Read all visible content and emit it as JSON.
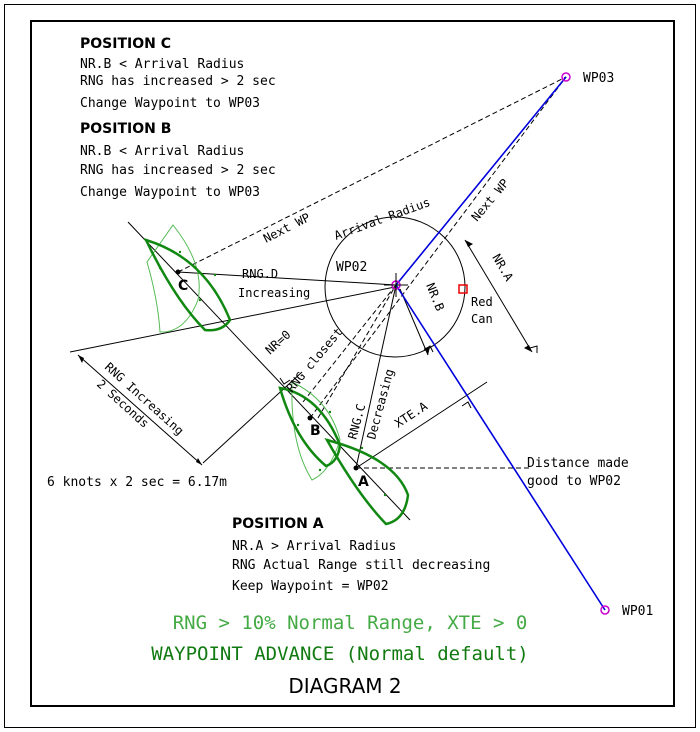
{
  "position_c": {
    "heading": "POSITION C",
    "lines": [
      "NR.B <  Arrival Radius",
      "RNG has increased > 2 sec",
      "Change Waypoint to WP03"
    ]
  },
  "position_b": {
    "heading": "POSITION B",
    "lines": [
      "NR.B <  Arrival Radius",
      "RNG has increased > 2 sec",
      "Change Waypoint to WP03"
    ]
  },
  "position_a": {
    "heading": "POSITION A",
    "lines": [
      "NR.A > Arrival Radius",
      "RNG Actual Range still decreasing",
      "Keep Waypoint = WP02"
    ]
  },
  "labels": {
    "wp03": "WP03",
    "wp02": "WP02",
    "wp01": "WP01",
    "arrival_radius": "Arrival Radius",
    "next_wp_upper": "Next WP",
    "next_wp_lower": "Next WP",
    "rng_d": "RNG.D",
    "increasing": "Increasing",
    "nr_zero": "NR=0",
    "rng_closest": "RNG closest",
    "rng_c": "RNG.C",
    "decreasing": "Decreasing",
    "nr_b": "NR.B",
    "nr_a": "NR.A",
    "red_can_1": "Red",
    "red_can_2": "Can",
    "xte_a": "XTE.A",
    "boat_c": "C",
    "boat_b": "B",
    "boat_a": "A",
    "rng_increasing_1": "RNG Increasing",
    "rng_increasing_2": "2 Seconds",
    "speed_calc": "6 knots x 2 sec = 6.17m",
    "distance_made_good_1": "Distance made",
    "distance_made_good_2": "good to WP02"
  },
  "footer": {
    "rule": "RNG > 10% Normal Range, XTE > 0",
    "mode": "WAYPOINT ADVANCE (Normal default)",
    "title": "DIAGRAM 2"
  },
  "colors": {
    "route": "#0000dd",
    "waypoint": "#cc00cc",
    "boat": "#118811",
    "boat_ghost": "#55bb55",
    "red_can": "#ee0000",
    "rule_text": "#44aa44",
    "mode_text": "#117a11"
  }
}
